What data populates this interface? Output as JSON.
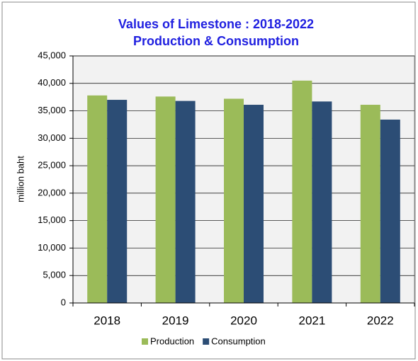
{
  "chart_data": {
    "type": "bar",
    "title": "Values of Limestone : 2018-2022",
    "subtitle": "Production & Consumption",
    "y_label": "million baht",
    "categories": [
      "2018",
      "2019",
      "2020",
      "2021",
      "2022"
    ],
    "series": [
      {
        "name": "Production",
        "color": "#9bbb59",
        "values": [
          37800,
          37600,
          37200,
          40500,
          36100
        ]
      },
      {
        "name": "Consumption",
        "color": "#2c4d75",
        "values": [
          37000,
          36800,
          36100,
          36700,
          33400
        ]
      }
    ],
    "ylim": [
      0,
      45000
    ],
    "yticks": [
      0,
      {
        "value": 5000,
        "label": "5,000"
      },
      {
        "value": 10000,
        "label": "10,000"
      },
      {
        "value": 15000,
        "label": "15,000"
      },
      {
        "value": 20000,
        "label": "20,000"
      },
      {
        "value": 25000,
        "label": "25,000"
      },
      {
        "value": 30000,
        "label": "30,000"
      },
      {
        "value": 35000,
        "label": "35,000"
      },
      {
        "value": 40000,
        "label": "40,000"
      },
      {
        "value": 45000,
        "label": "45,000"
      }
    ],
    "grid": true,
    "legend": "bottom"
  }
}
